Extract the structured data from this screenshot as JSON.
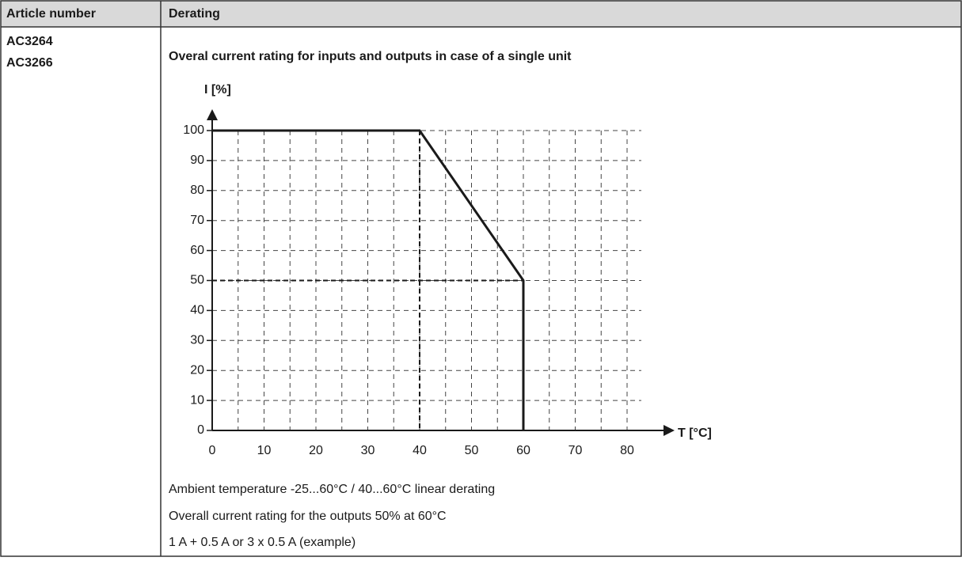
{
  "table": {
    "headers": [
      "Article number",
      "Derating"
    ],
    "articles": [
      "AC3264",
      "AC3266"
    ],
    "heading": "Overal current rating for inputs and outputs in case of a single unit",
    "notes": [
      "Ambient temperature -25...60°C / 40...60°C linear derating",
      "Overall current rating for the outputs 50% at 60°C",
      "1 A + 0.5 A or 3 x 0.5 A (example)"
    ]
  },
  "chart_data": {
    "type": "line",
    "ylabel": "I [%]",
    "xlabel": "T [°C]",
    "x": [
      0,
      40,
      60,
      60
    ],
    "values": [
      100,
      100,
      50,
      0
    ],
    "color": "#1a1a1a",
    "xlim": [
      0,
      80
    ],
    "xticks": [
      0,
      10,
      20,
      30,
      40,
      50,
      60,
      70,
      80
    ],
    "ylim": [
      0,
      100
    ],
    "yticks": [
      0,
      10,
      20,
      30,
      40,
      50,
      60,
      70,
      80,
      90,
      100
    ],
    "grid": true
  }
}
